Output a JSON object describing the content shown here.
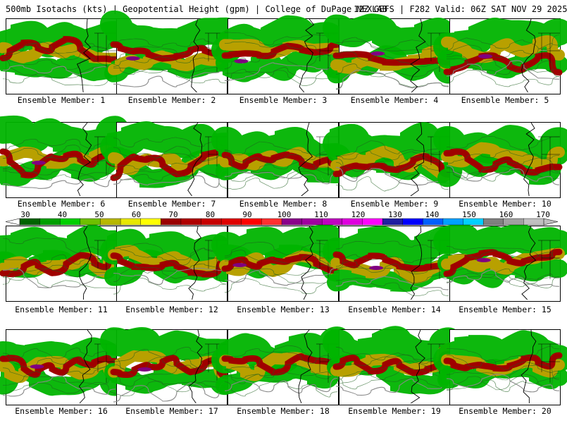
{
  "header": {
    "left": "500mb Isotachs (kts) | Geopotential Height (gpm) | College of DuPage NEXLAB",
    "right": "12Z GEFS | F282 Valid: 06Z SAT NOV 29 2025"
  },
  "panels": [
    {
      "caption": "Ensemble Member: 1"
    },
    {
      "caption": "Ensemble Member: 2"
    },
    {
      "caption": "Ensemble Member: 3"
    },
    {
      "caption": "Ensemble Member: 4"
    },
    {
      "caption": "Ensemble Member: 5"
    },
    {
      "caption": "Ensemble Member: 6"
    },
    {
      "caption": "Ensemble Member: 7"
    },
    {
      "caption": "Ensemble Member: 8"
    },
    {
      "caption": "Ensemble Member: 9"
    },
    {
      "caption": "Ensemble Member: 10"
    },
    {
      "caption": "Ensemble Member: 11"
    },
    {
      "caption": "Ensemble Member: 12"
    },
    {
      "caption": "Ensemble Member: 13"
    },
    {
      "caption": "Ensemble Member: 14"
    },
    {
      "caption": "Ensemble Member: 15"
    },
    {
      "caption": "Ensemble Member: 16"
    },
    {
      "caption": "Ensemble Member: 17"
    },
    {
      "caption": "Ensemble Member: 18"
    },
    {
      "caption": "Ensemble Member: 19"
    },
    {
      "caption": "Ensemble Member: 20"
    }
  ],
  "colorbar": {
    "ticks": [
      "30",
      "40",
      "50",
      "60",
      "70",
      "80",
      "90",
      "100",
      "110",
      "120",
      "130",
      "140",
      "150",
      "160",
      "170"
    ],
    "colors": [
      "#006400",
      "#00a000",
      "#00d000",
      "#6fbf00",
      "#b8b800",
      "#e8e800",
      "#ffff00",
      "#9b0000",
      "#b00000",
      "#c80000",
      "#e00000",
      "#ff0000",
      "#ff3030",
      "#8b008b",
      "#a000a0",
      "#c000c0",
      "#e000e0",
      "#ff00ff",
      "#2020a0",
      "#0000ff",
      "#0060ff",
      "#00a0ff",
      "#00d0ff",
      "#808080",
      "#a0a0a0",
      "#c0c0c0"
    ]
  },
  "map_colors": {
    "jet_low": "#00b400",
    "jet_mid": "#b8a000",
    "jet_core": "#a00000",
    "jet_max": "#800080",
    "contour": "#888888"
  }
}
